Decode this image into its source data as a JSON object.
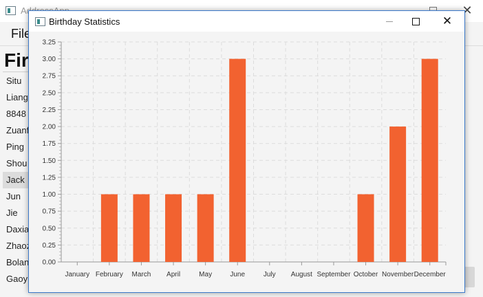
{
  "main_window": {
    "title": "AddressApp",
    "menu": {
      "file_label": "File"
    },
    "list_header": "Fir",
    "people": [
      "Situ",
      "Liang",
      "8848",
      "Zuanf",
      "Ping",
      "Shou",
      "Jack",
      "Jun",
      "Jie",
      "Daxia",
      "Zhaoz",
      "Bolan",
      "Gaoyi"
    ],
    "selected_index": 6
  },
  "dialog": {
    "title": "Birthday Statistics",
    "close_glyph": "✕"
  },
  "chart_data": {
    "type": "bar",
    "categories": [
      "January",
      "February",
      "March",
      "April",
      "May",
      "June",
      "July",
      "August",
      "September",
      "October",
      "November",
      "December"
    ],
    "values": [
      0,
      1,
      1,
      1,
      1,
      3,
      0,
      0,
      0,
      1,
      2,
      3
    ],
    "yticks": [
      "0.00",
      "0.25",
      "0.50",
      "0.75",
      "1.00",
      "1.25",
      "1.50",
      "1.75",
      "2.00",
      "2.25",
      "2.50",
      "2.75",
      "3.00",
      "3.25"
    ],
    "ylim": [
      0,
      3.25
    ],
    "grid": true,
    "bar_color": "#f26230",
    "title": "",
    "xlabel": "",
    "ylabel": ""
  }
}
